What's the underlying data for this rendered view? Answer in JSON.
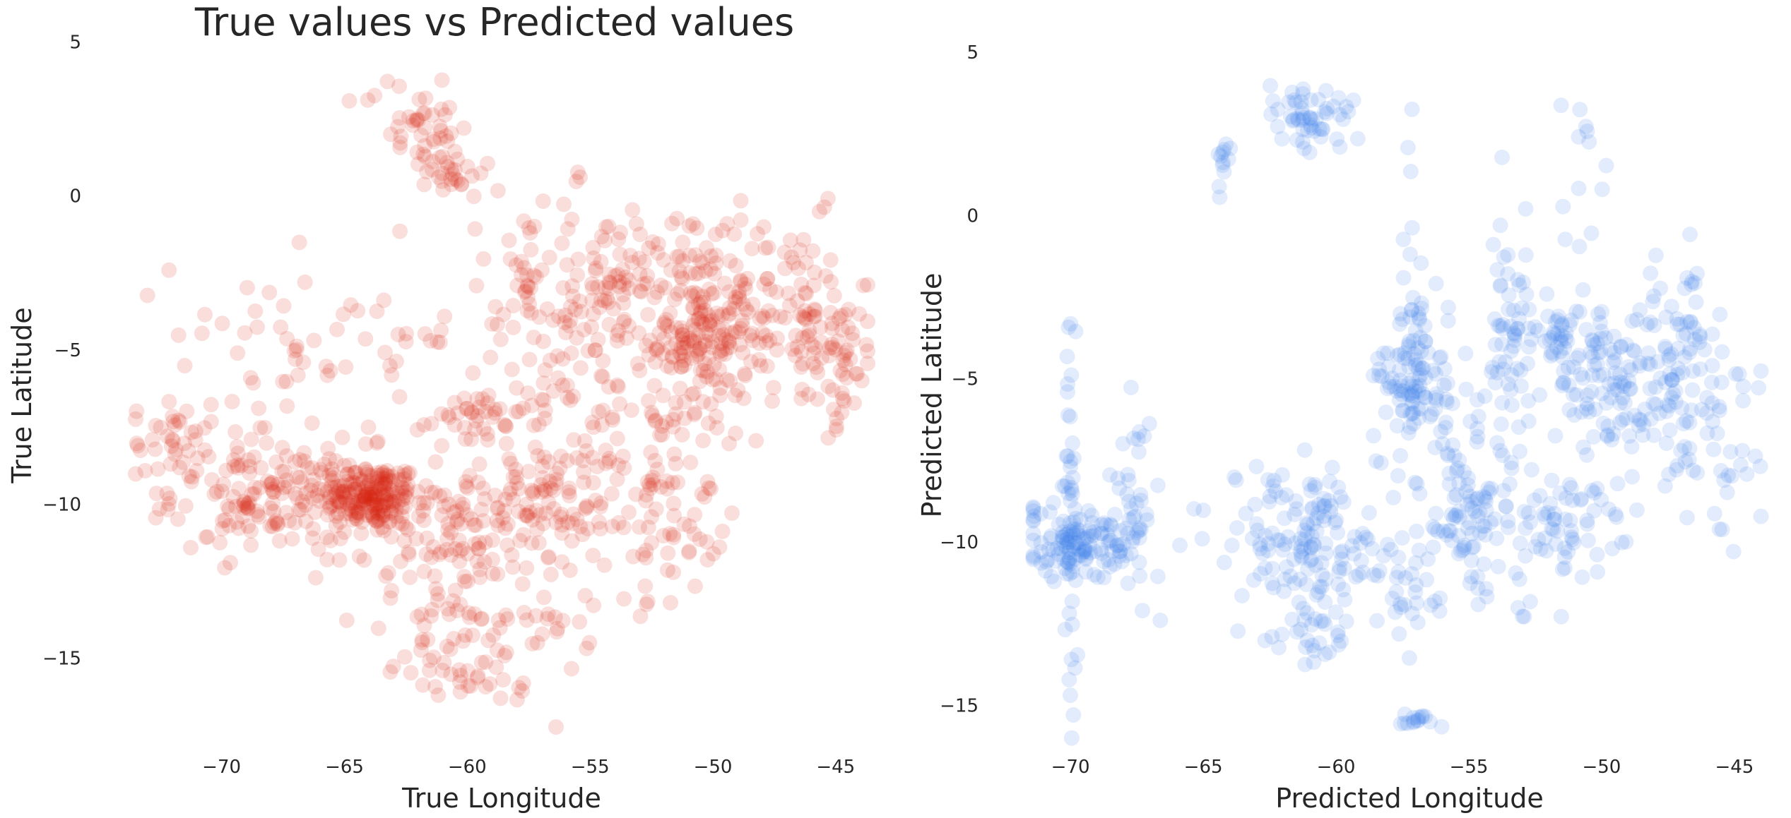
{
  "title": "True values vs Predicted values",
  "chart_data": [
    {
      "type": "scatter",
      "title": "True values vs Predicted values",
      "xlabel": "True Longitude",
      "ylabel": "True Latitude",
      "xlim": [
        -73.7,
        -43.5
      ],
      "ylim": [
        -17.8,
        5.1
      ],
      "xticks": [
        -70,
        -65,
        -60,
        -55,
        -50,
        -45
      ],
      "yticks": [
        5,
        0,
        -5,
        -10,
        -15
      ],
      "grid": false,
      "color": "#d62210",
      "alpha": 0.15,
      "clusters": [
        {
          "x": -64,
          "y": -9.7,
          "sx": 1.1,
          "sy": 0.5,
          "n": 180
        },
        {
          "x": -50.5,
          "y": -4.5,
          "sx": 1.0,
          "sy": 1.4,
          "n": 160
        },
        {
          "x": -68,
          "y": -9.8,
          "sx": 2.0,
          "sy": 0.9,
          "n": 150
        },
        {
          "x": -60,
          "y": -10.3,
          "sx": 2.5,
          "sy": 0.8,
          "n": 120
        },
        {
          "x": -53.5,
          "y": -2.8,
          "sx": 2.0,
          "sy": 1.2,
          "n": 90
        },
        {
          "x": -47,
          "y": -4.0,
          "sx": 1.8,
          "sy": 1.6,
          "n": 120
        },
        {
          "x": -62,
          "y": 2.3,
          "sx": 1.1,
          "sy": 0.8,
          "n": 45
        },
        {
          "x": -60.5,
          "y": 0.8,
          "sx": 0.6,
          "sy": 0.4,
          "n": 25
        },
        {
          "x": -59.5,
          "y": -7.0,
          "sx": 0.8,
          "sy": 0.4,
          "n": 30
        },
        {
          "x": -56.5,
          "y": -7.0,
          "sx": 2.0,
          "sy": 2.0,
          "n": 90
        },
        {
          "x": -61,
          "y": -13.5,
          "sx": 1.6,
          "sy": 1.5,
          "n": 70
        },
        {
          "x": -57,
          "y": -12.5,
          "sx": 1.6,
          "sy": 1.8,
          "n": 60
        },
        {
          "x": -53.5,
          "y": -9.0,
          "sx": 2.0,
          "sy": 2.0,
          "n": 70
        },
        {
          "x": -72,
          "y": -8.0,
          "sx": 0.8,
          "sy": 0.8,
          "n": 40
        },
        {
          "x": -66,
          "y": -4.5,
          "sx": 3.0,
          "sy": 1.3,
          "n": 60
        },
        {
          "x": -56,
          "y": -3.0,
          "sx": 2.6,
          "sy": 1.5,
          "n": 70
        },
        {
          "x": -45,
          "y": -5.5,
          "sx": 0.7,
          "sy": 1.0,
          "n": 40
        },
        {
          "x": -51,
          "y": -10.0,
          "sx": 1.2,
          "sy": 1.8,
          "n": 40
        },
        {
          "x": -59.5,
          "y": -15.5,
          "sx": 1.5,
          "sy": 0.6,
          "n": 20
        }
      ]
    },
    {
      "type": "scatter",
      "xlabel": "Predicted Longitude",
      "ylabel": "Predicted Latitude",
      "xlim": [
        -71.6,
        -43.8
      ],
      "ylim": [
        -16.2,
        5.3
      ],
      "xticks": [
        -70,
        -65,
        -60,
        -55,
        -50,
        -45
      ],
      "yticks": [
        5,
        0,
        -5,
        -10,
        -15
      ],
      "grid": false,
      "color": "#3e7fea",
      "alpha": 0.15,
      "clusters": [
        {
          "x": -69.5,
          "y": -10.0,
          "sx": 1.2,
          "sy": 0.6,
          "n": 130
        },
        {
          "x": -70,
          "y": -9.0,
          "sx": 0.12,
          "sy": 3.0,
          "n": 50
        },
        {
          "x": -61.5,
          "y": -9.5,
          "sx": 1.5,
          "sy": 1.0,
          "n": 110
        },
        {
          "x": -61,
          "y": 3.0,
          "sx": 0.8,
          "sy": 0.5,
          "n": 55
        },
        {
          "x": -64.3,
          "y": 1.5,
          "sx": 0.12,
          "sy": 0.5,
          "n": 12
        },
        {
          "x": -57,
          "y": -5.0,
          "sx": 0.7,
          "sy": 1.0,
          "n": 90
        },
        {
          "x": -57,
          "y": -3.0,
          "sx": 0.2,
          "sy": 2.5,
          "n": 30
        },
        {
          "x": -55,
          "y": -8.5,
          "sx": 0.6,
          "sy": 1.6,
          "n": 80
        },
        {
          "x": -53.5,
          "y": -4.0,
          "sx": 0.4,
          "sy": 2.5,
          "n": 60
        },
        {
          "x": -51,
          "y": -3.8,
          "sx": 1.2,
          "sy": 0.6,
          "n": 70
        },
        {
          "x": -49.5,
          "y": -5.5,
          "sx": 1.2,
          "sy": 0.8,
          "n": 70
        },
        {
          "x": -47.2,
          "y": -4.0,
          "sx": 0.8,
          "sy": 1.5,
          "n": 80
        },
        {
          "x": -51,
          "y": -9.5,
          "sx": 1.3,
          "sy": 0.8,
          "n": 60
        },
        {
          "x": -46,
          "y": -7.0,
          "sx": 1.5,
          "sy": 1.5,
          "n": 50
        },
        {
          "x": -61,
          "y": -12.5,
          "sx": 0.8,
          "sy": 0.7,
          "n": 40
        },
        {
          "x": -58.5,
          "y": -10.5,
          "sx": 1.2,
          "sy": 1.2,
          "n": 50
        },
        {
          "x": -57,
          "y": -15.4,
          "sx": 0.5,
          "sy": 0.1,
          "n": 15
        },
        {
          "x": -54.5,
          "y": -11.0,
          "sx": 1.5,
          "sy": 1.2,
          "n": 30
        },
        {
          "x": -67.5,
          "y": -8.5,
          "sx": 0.6,
          "sy": 1.8,
          "n": 30
        },
        {
          "x": -51,
          "y": 0.5,
          "sx": 0.4,
          "sy": 2.0,
          "n": 15
        }
      ]
    }
  ]
}
